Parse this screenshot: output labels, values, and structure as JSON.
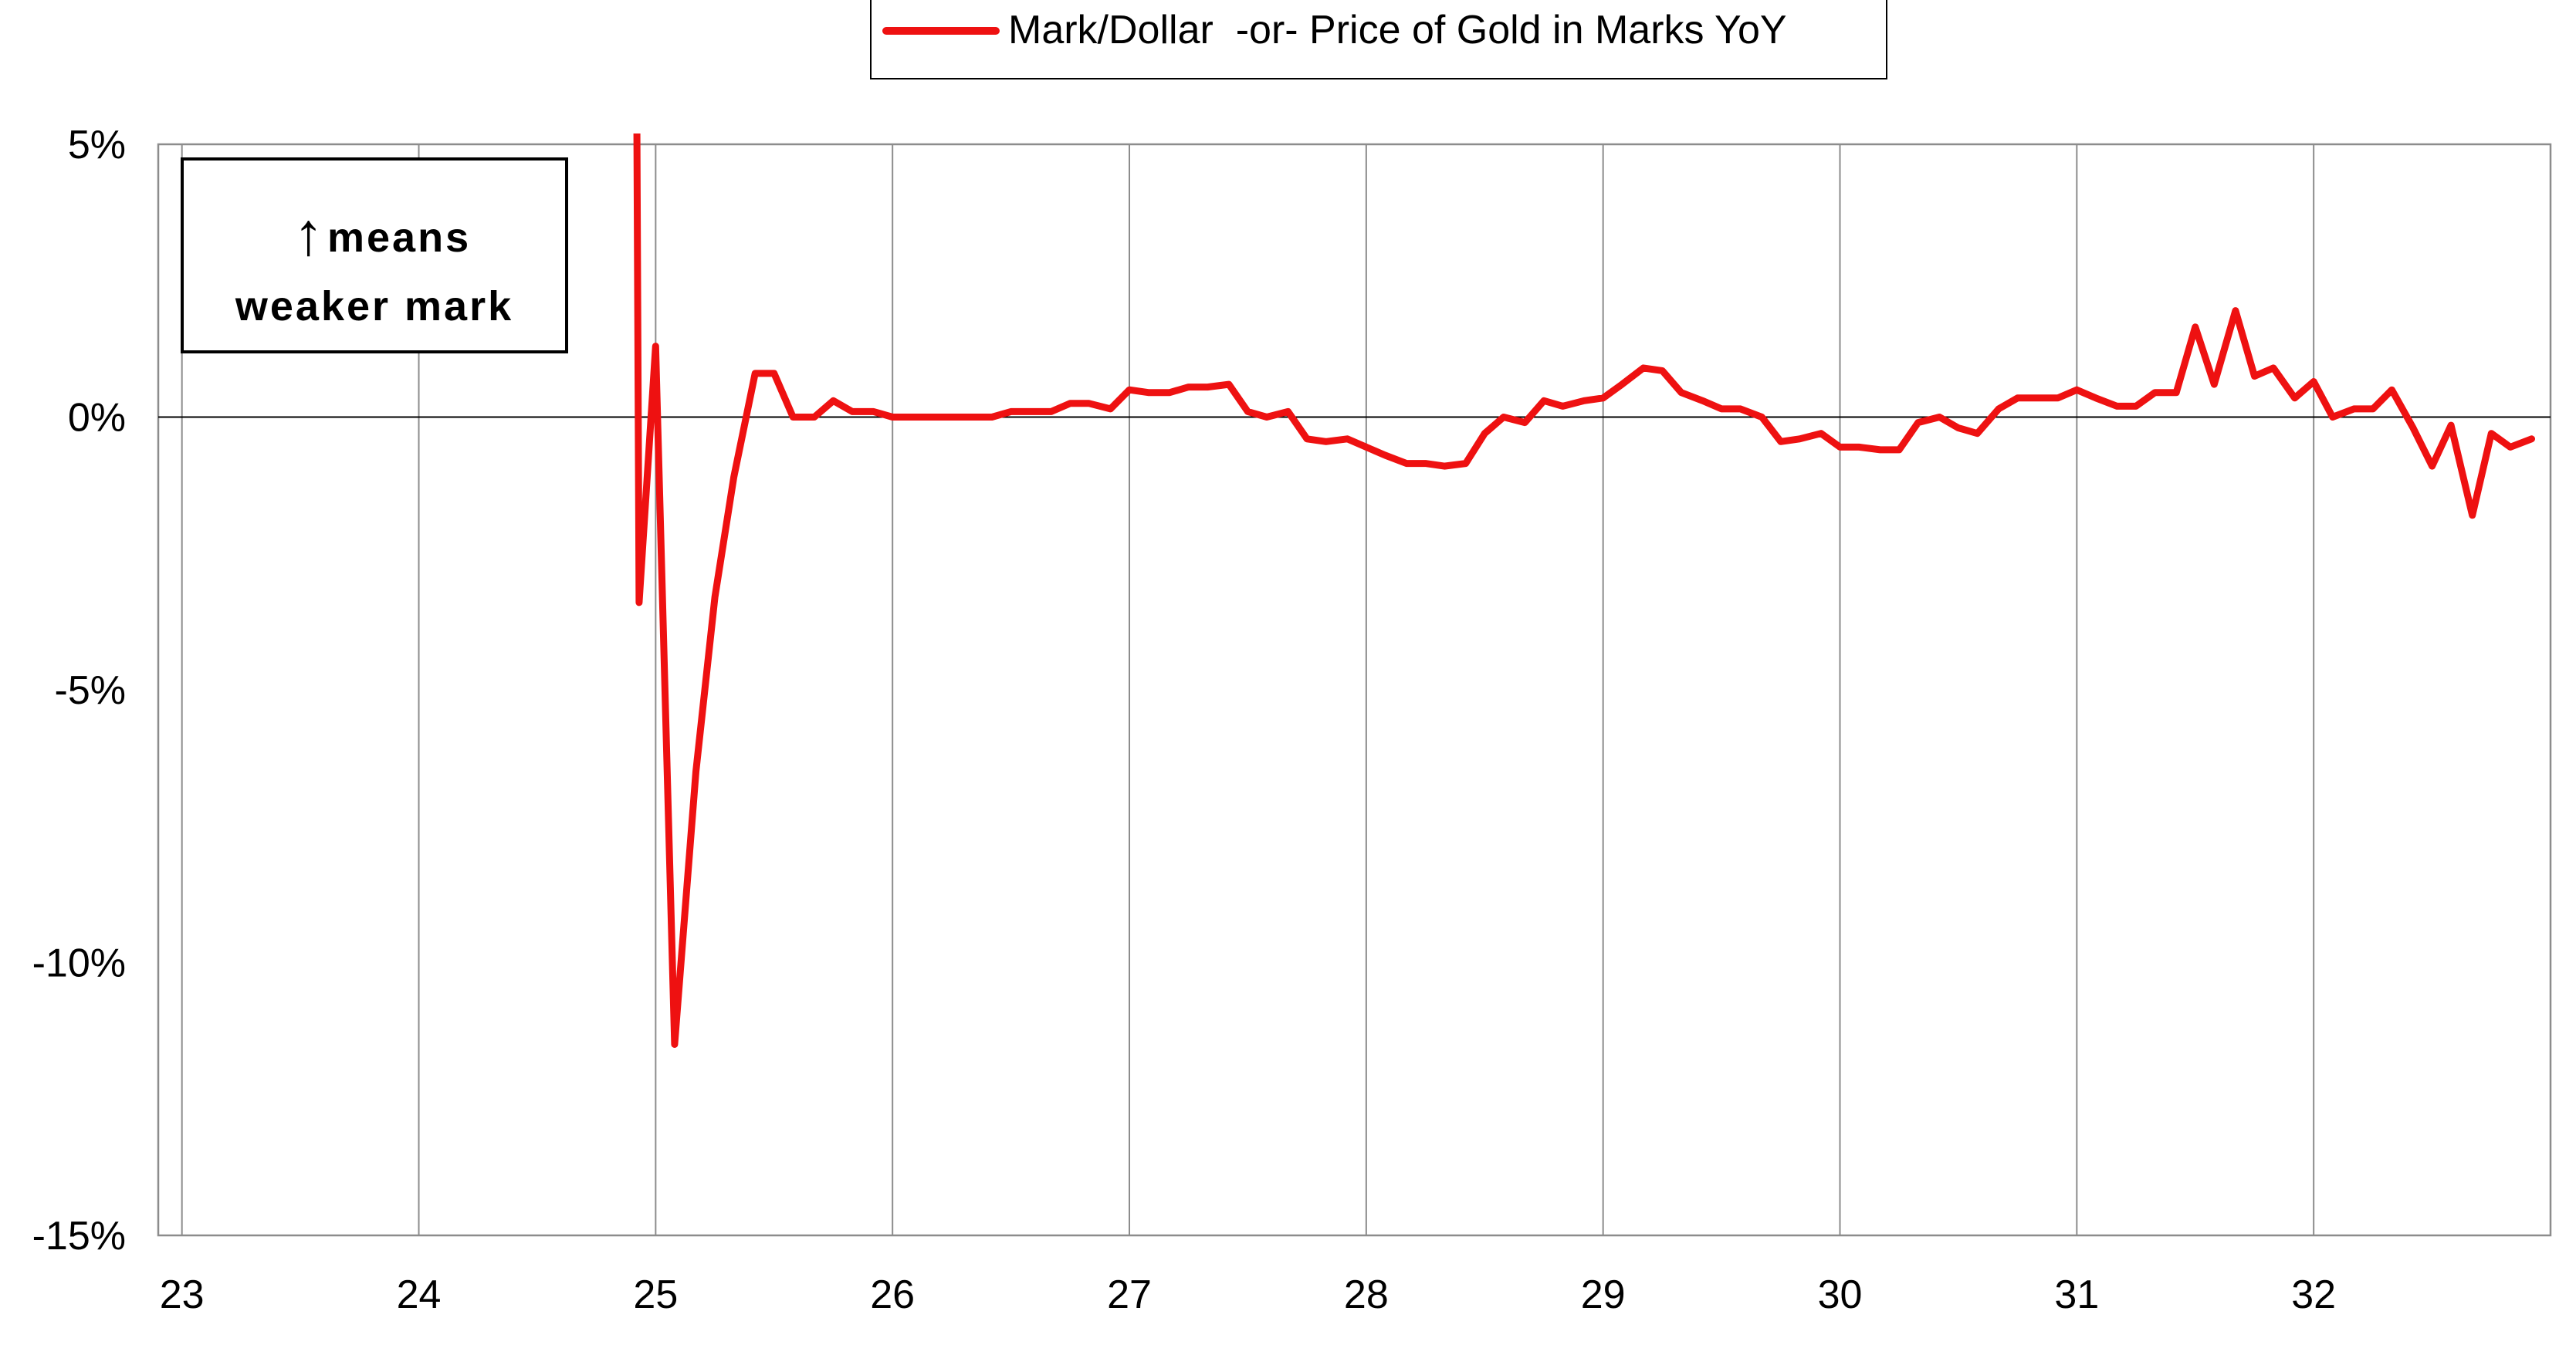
{
  "chart_data": {
    "type": "line",
    "title": "",
    "xlabel": "",
    "ylabel": "",
    "xlim": [
      22.9,
      33.0
    ],
    "ylim": [
      -15,
      5
    ],
    "x_ticks": [
      23,
      24,
      25,
      26,
      27,
      28,
      29,
      30,
      31,
      32
    ],
    "x_tick_labels": [
      "23",
      "24",
      "25",
      "26",
      "27",
      "28",
      "29",
      "30",
      "31",
      "32"
    ],
    "y_ticks": [
      5,
      0,
      -5,
      -10,
      -15
    ],
    "y_tick_labels": [
      "5%",
      "0%",
      "-5%",
      "-10%",
      "-15%"
    ],
    "grid": true,
    "legend_position": "top-center",
    "annotation": {
      "arrow": "↑",
      "line1": "means",
      "line2": "weaker mark"
    },
    "series": [
      {
        "name": "Mark/Dollar  -or- Price of Gold in Marks YoY",
        "color": "#ee1111",
        "clip_top": true,
        "points": [
          [
            24.92,
            6.0
          ],
          [
            24.93,
            -3.4
          ],
          [
            25.0,
            1.3
          ],
          [
            25.08,
            -11.5
          ],
          [
            25.17,
            -6.5
          ],
          [
            25.25,
            -3.3
          ],
          [
            25.33,
            -1.1
          ],
          [
            25.42,
            0.8
          ],
          [
            25.5,
            0.8
          ],
          [
            25.58,
            0.0
          ],
          [
            25.67,
            0.0
          ],
          [
            25.75,
            0.3
          ],
          [
            25.83,
            0.1
          ],
          [
            25.92,
            0.1
          ],
          [
            26.0,
            0.0
          ],
          [
            26.08,
            0.0
          ],
          [
            26.17,
            0.0
          ],
          [
            26.25,
            0.0
          ],
          [
            26.33,
            0.0
          ],
          [
            26.42,
            0.0
          ],
          [
            26.5,
            0.1
          ],
          [
            26.58,
            0.1
          ],
          [
            26.67,
            0.1
          ],
          [
            26.75,
            0.25
          ],
          [
            26.83,
            0.25
          ],
          [
            26.92,
            0.15
          ],
          [
            27.0,
            0.5
          ],
          [
            27.08,
            0.45
          ],
          [
            27.17,
            0.45
          ],
          [
            27.25,
            0.55
          ],
          [
            27.33,
            0.55
          ],
          [
            27.42,
            0.6
          ],
          [
            27.5,
            0.1
          ],
          [
            27.58,
            0.0
          ],
          [
            27.67,
            0.1
          ],
          [
            27.75,
            -0.4
          ],
          [
            27.83,
            -0.45
          ],
          [
            27.92,
            -0.4
          ],
          [
            28.0,
            -0.55
          ],
          [
            28.08,
            -0.7
          ],
          [
            28.17,
            -0.85
          ],
          [
            28.25,
            -0.85
          ],
          [
            28.33,
            -0.9
          ],
          [
            28.42,
            -0.85
          ],
          [
            28.5,
            -0.3
          ],
          [
            28.58,
            0.0
          ],
          [
            28.67,
            -0.1
          ],
          [
            28.75,
            0.3
          ],
          [
            28.83,
            0.2
          ],
          [
            28.92,
            0.3
          ],
          [
            29.0,
            0.35
          ],
          [
            29.08,
            0.6
          ],
          [
            29.17,
            0.9
          ],
          [
            29.25,
            0.85
          ],
          [
            29.33,
            0.45
          ],
          [
            29.42,
            0.3
          ],
          [
            29.5,
            0.15
          ],
          [
            29.58,
            0.15
          ],
          [
            29.67,
            0.0
          ],
          [
            29.75,
            -0.45
          ],
          [
            29.83,
            -0.4
          ],
          [
            29.92,
            -0.3
          ],
          [
            30.0,
            -0.55
          ],
          [
            30.08,
            -0.55
          ],
          [
            30.17,
            -0.6
          ],
          [
            30.25,
            -0.6
          ],
          [
            30.33,
            -0.1
          ],
          [
            30.42,
            0.0
          ],
          [
            30.5,
            -0.2
          ],
          [
            30.58,
            -0.3
          ],
          [
            30.67,
            0.15
          ],
          [
            30.75,
            0.35
          ],
          [
            30.83,
            0.35
          ],
          [
            30.92,
            0.35
          ],
          [
            31.0,
            0.5
          ],
          [
            31.08,
            0.35
          ],
          [
            31.17,
            0.2
          ],
          [
            31.25,
            0.2
          ],
          [
            31.33,
            0.45
          ],
          [
            31.42,
            0.45
          ],
          [
            31.5,
            1.65
          ],
          [
            31.58,
            0.6
          ],
          [
            31.67,
            1.95
          ],
          [
            31.75,
            0.75
          ],
          [
            31.83,
            0.9
          ],
          [
            31.92,
            0.35
          ],
          [
            32.0,
            0.65
          ],
          [
            32.08,
            0.0
          ],
          [
            32.17,
            0.15
          ],
          [
            32.25,
            0.15
          ],
          [
            32.33,
            0.5
          ],
          [
            32.42,
            -0.2
          ],
          [
            32.5,
            -0.9
          ],
          [
            32.58,
            -0.15
          ],
          [
            32.67,
            -1.8
          ],
          [
            32.75,
            -0.3
          ],
          [
            32.83,
            -0.55
          ],
          [
            32.92,
            -0.4
          ]
        ]
      }
    ]
  }
}
